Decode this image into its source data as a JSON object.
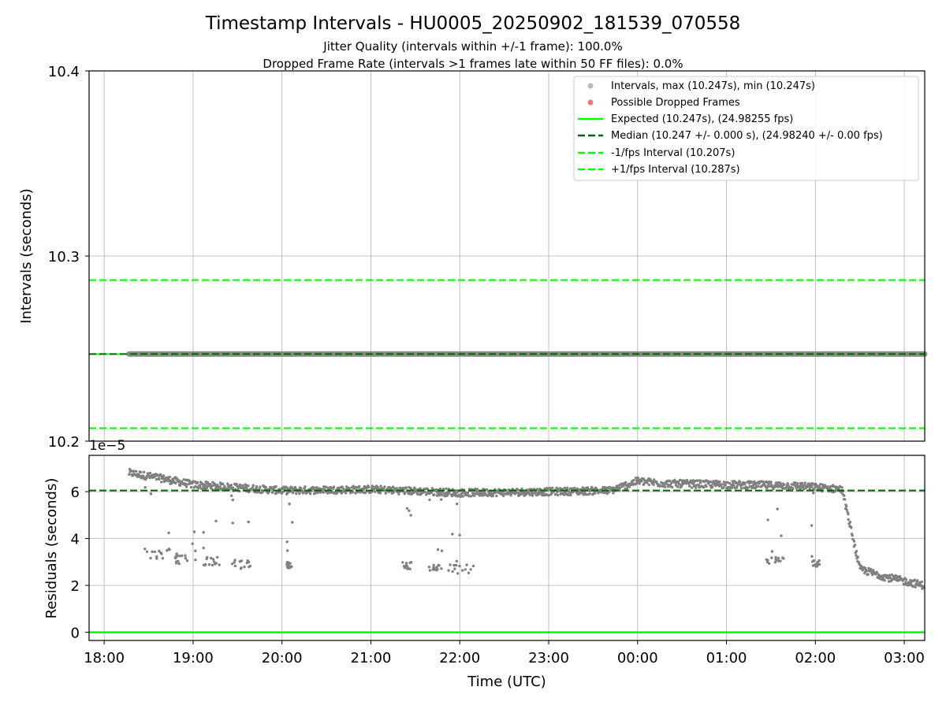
{
  "chart_data": [
    {
      "type": "line",
      "title": "Timestamp Intervals - HU0005_20250902_181539_070558",
      "subtitle_lines": [
        "Jitter Quality (intervals within +/-1 frame): 100.0%",
        "Dropped Frame Rate (intervals >1 frames late within 50 FF files): 0.0%"
      ],
      "ylabel": "Intervals (seconds)",
      "ylim": [
        10.2,
        10.4
      ],
      "yticks": [
        10.2,
        10.3,
        10.4
      ],
      "ytick_labels": [
        "10.2",
        "10.3",
        "10.4"
      ],
      "grid": true,
      "legend_position": "top-right",
      "legend": [
        "Intervals, max (10.247s), min (10.247s)",
        "Possible Dropped Frames",
        "Expected (10.247s), (24.98255 fps)",
        "Median (10.247 +/- 0.000 s), (24.98240 +/- 0.00 fps)",
        "-1/fps Interval (10.207s)",
        "+1/fps Interval (10.287s)"
      ],
      "series": [
        {
          "name": "Intervals",
          "kind": "scatter",
          "x_range_hours": [
            18.28,
            27.22
          ],
          "y": 10.24706,
          "color": "#808080"
        },
        {
          "name": "Possible Dropped Frames",
          "kind": "scatter",
          "values": [],
          "color": "#ff0000"
        },
        {
          "name": "Expected",
          "kind": "hline",
          "y": 10.247,
          "color": "#00ff00",
          "style": "solid"
        },
        {
          "name": "Median",
          "kind": "hline",
          "y": 10.24706,
          "color": "#006400",
          "style": "dashed"
        },
        {
          "name": "-1/fps Interval",
          "kind": "hline",
          "y": 10.207,
          "color": "#00ff00",
          "style": "dashed"
        },
        {
          "name": "+1/fps Interval",
          "kind": "hline",
          "y": 10.287,
          "color": "#00ff00",
          "style": "dashed"
        }
      ]
    },
    {
      "type": "scatter",
      "xlabel": "Time (UTC)",
      "ylabel": "Residuals (seconds)",
      "y_scale_label": "1e−5",
      "xlim_hours": [
        17.83,
        27.23
      ],
      "ylim": [
        -0.35,
        7.55
      ],
      "xticks_hours": [
        18,
        19,
        20,
        21,
        22,
        23,
        24,
        25,
        26,
        27
      ],
      "xtick_labels": [
        "18:00",
        "19:00",
        "20:00",
        "21:00",
        "22:00",
        "23:00",
        "00:00",
        "01:00",
        "02:00",
        "03:00"
      ],
      "yticks": [
        0,
        2,
        4,
        6
      ],
      "ytick_labels": [
        "0",
        "2",
        "4",
        "6"
      ],
      "grid": true,
      "zero_line": {
        "y": 0,
        "color": "#00ff00"
      },
      "median_line": {
        "y": 6.05,
        "color": "#006400",
        "style": "dashed"
      },
      "residual_trend": [
        [
          18.28,
          6.8
        ],
        [
          18.6,
          6.6
        ],
        [
          19.0,
          6.3
        ],
        [
          20.0,
          6.05
        ],
        [
          21.0,
          6.1
        ],
        [
          22.0,
          5.95
        ],
        [
          23.0,
          6.0
        ],
        [
          23.7,
          6.05
        ],
        [
          24.0,
          6.45
        ],
        [
          24.3,
          6.35
        ],
        [
          25.0,
          6.3
        ],
        [
          25.8,
          6.25
        ],
        [
          26.3,
          6.1
        ],
        [
          26.5,
          2.7
        ],
        [
          26.8,
          2.35
        ],
        [
          27.22,
          2.0
        ]
      ],
      "outlier_clusters": [
        {
          "x": [
            18.45,
            18.75
          ],
          "y": [
            3.1,
            3.6
          ]
        },
        {
          "x": [
            18.8,
            19.05
          ],
          "y": [
            2.9,
            3.3
          ]
        },
        {
          "x": [
            19.1,
            19.3
          ],
          "y": [
            2.8,
            3.2
          ]
        },
        {
          "x": [
            19.4,
            19.65
          ],
          "y": [
            2.7,
            3.1
          ]
        },
        {
          "x": [
            20.05,
            20.12
          ],
          "y": [
            2.7,
            3.0
          ]
        },
        {
          "x": [
            21.35,
            21.5
          ],
          "y": [
            2.7,
            3.0
          ]
        },
        {
          "x": [
            21.65,
            21.8
          ],
          "y": [
            2.6,
            2.9
          ]
        },
        {
          "x": [
            21.85,
            22.2
          ],
          "y": [
            2.5,
            2.9
          ]
        },
        {
          "x": [
            25.45,
            25.65
          ],
          "y": [
            2.9,
            3.2
          ]
        },
        {
          "x": [
            25.95,
            26.05
          ],
          "y": [
            2.8,
            3.1
          ]
        }
      ],
      "series_color": "#808080"
    }
  ]
}
